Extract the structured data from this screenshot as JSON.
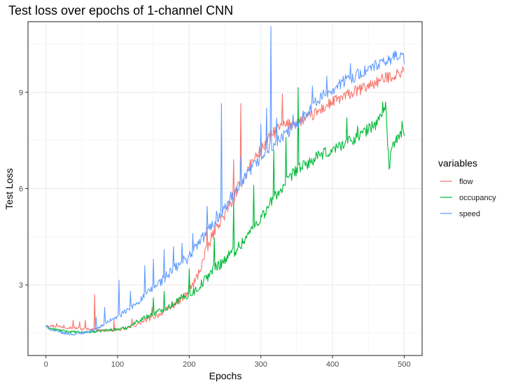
{
  "chart_data": {
    "type": "line",
    "title": "Test loss over epochs of 1-channel CNN",
    "xlabel": "Epochs",
    "ylabel": "Test Loss",
    "xlim": [
      -25,
      525
    ],
    "ylim": [
      0.8,
      11.2
    ],
    "x_ticks": [
      0,
      100,
      200,
      300,
      400,
      500
    ],
    "y_ticks": [
      3,
      6,
      9
    ],
    "grid": true,
    "legend": {
      "title": "variables",
      "position": "right"
    },
    "series": [
      {
        "name": "flow",
        "color": "#F8766D",
        "points": [
          [
            0,
            1.75
          ],
          [
            10,
            1.72
          ],
          [
            20,
            1.7
          ],
          [
            30,
            1.68
          ],
          [
            40,
            1.66
          ],
          [
            50,
            1.63
          ],
          [
            60,
            1.62
          ],
          [
            70,
            1.6
          ],
          [
            80,
            1.58
          ],
          [
            90,
            1.58
          ],
          [
            100,
            1.6
          ],
          [
            110,
            1.62
          ],
          [
            120,
            1.7
          ],
          [
            130,
            1.8
          ],
          [
            140,
            1.9
          ],
          [
            150,
            2.0
          ],
          [
            160,
            2.1
          ],
          [
            170,
            2.25
          ],
          [
            180,
            2.4
          ],
          [
            190,
            2.55
          ],
          [
            200,
            2.8
          ],
          [
            210,
            3.2
          ],
          [
            220,
            3.8
          ],
          [
            230,
            4.4
          ],
          [
            240,
            4.9
          ],
          [
            250,
            5.2
          ],
          [
            260,
            5.6
          ],
          [
            270,
            6.1
          ],
          [
            280,
            6.5
          ],
          [
            290,
            6.9
          ],
          [
            300,
            7.2
          ],
          [
            310,
            7.5
          ],
          [
            320,
            7.8
          ],
          [
            330,
            7.95
          ],
          [
            340,
            8.0
          ],
          [
            350,
            8.05
          ],
          [
            360,
            8.15
          ],
          [
            370,
            8.25
          ],
          [
            380,
            8.4
          ],
          [
            390,
            8.55
          ],
          [
            400,
            8.7
          ],
          [
            410,
            8.8
          ],
          [
            420,
            8.9
          ],
          [
            430,
            9.0
          ],
          [
            440,
            9.1
          ],
          [
            450,
            9.2
          ],
          [
            460,
            9.3
          ],
          [
            470,
            9.4
          ],
          [
            480,
            9.5
          ],
          [
            490,
            9.55
          ],
          [
            500,
            9.7
          ]
        ],
        "spikes": [
          [
            15,
            1.8
          ],
          [
            25,
            1.75
          ],
          [
            38,
            1.9
          ],
          [
            47,
            1.85
          ],
          [
            55,
            1.9
          ],
          [
            68,
            2.7
          ],
          [
            95,
            1.9
          ],
          [
            120,
            1.95
          ],
          [
            148,
            2.3
          ],
          [
            180,
            2.45
          ],
          [
            200,
            3.05
          ],
          [
            225,
            4.8
          ],
          [
            240,
            4.9
          ],
          [
            255,
            5.6
          ],
          [
            262,
            6.9
          ],
          [
            272,
            8.65
          ],
          [
            285,
            6.9
          ],
          [
            292,
            7.0
          ],
          [
            310,
            7.6
          ],
          [
            330,
            8.95
          ],
          [
            345,
            8.1
          ]
        ]
      },
      {
        "name": "occupancy",
        "color": "#00BA38",
        "points": [
          [
            0,
            1.7
          ],
          [
            10,
            1.62
          ],
          [
            20,
            1.58
          ],
          [
            30,
            1.55
          ],
          [
            40,
            1.53
          ],
          [
            50,
            1.52
          ],
          [
            60,
            1.53
          ],
          [
            70,
            1.55
          ],
          [
            80,
            1.58
          ],
          [
            90,
            1.6
          ],
          [
            100,
            1.62
          ],
          [
            110,
            1.65
          ],
          [
            120,
            1.75
          ],
          [
            130,
            1.9
          ],
          [
            140,
            2.0
          ],
          [
            150,
            2.1
          ],
          [
            160,
            2.2
          ],
          [
            170,
            2.3
          ],
          [
            180,
            2.45
          ],
          [
            190,
            2.6
          ],
          [
            200,
            2.7
          ],
          [
            210,
            2.85
          ],
          [
            220,
            3.1
          ],
          [
            230,
            3.4
          ],
          [
            240,
            3.6
          ],
          [
            250,
            3.8
          ],
          [
            260,
            4.0
          ],
          [
            270,
            4.2
          ],
          [
            280,
            4.5
          ],
          [
            290,
            4.8
          ],
          [
            300,
            5.1
          ],
          [
            310,
            5.4
          ],
          [
            320,
            5.8
          ],
          [
            330,
            6.0
          ],
          [
            340,
            6.3
          ],
          [
            350,
            6.6
          ],
          [
            360,
            6.7
          ],
          [
            370,
            6.85
          ],
          [
            380,
            7.0
          ],
          [
            390,
            7.1
          ],
          [
            400,
            7.2
          ],
          [
            410,
            7.35
          ],
          [
            420,
            7.45
          ],
          [
            430,
            7.55
          ],
          [
            440,
            7.7
          ],
          [
            450,
            7.85
          ],
          [
            460,
            8.0
          ],
          [
            470,
            8.35
          ],
          [
            474,
            8.65
          ],
          [
            479,
            6.6
          ],
          [
            482,
            7.3
          ],
          [
            490,
            7.5
          ],
          [
            500,
            7.8
          ]
        ],
        "spikes": [
          [
            150,
            2.6
          ],
          [
            165,
            2.8
          ],
          [
            200,
            3.5
          ],
          [
            235,
            4.45
          ],
          [
            262,
            5.6
          ],
          [
            290,
            6.1
          ],
          [
            318,
            7.2
          ],
          [
            335,
            7.6
          ],
          [
            352,
            9.15
          ],
          [
            372,
            6.8
          ],
          [
            395,
            7.0
          ],
          [
            420,
            8.2
          ],
          [
            435,
            7.95
          ],
          [
            455,
            8.1
          ],
          [
            470,
            8.7
          ],
          [
            497,
            8.1
          ]
        ]
      },
      {
        "name": "speed",
        "color": "#619CFF",
        "points": [
          [
            0,
            1.7
          ],
          [
            10,
            1.58
          ],
          [
            20,
            1.52
          ],
          [
            30,
            1.48
          ],
          [
            40,
            1.46
          ],
          [
            50,
            1.5
          ],
          [
            60,
            1.55
          ],
          [
            70,
            1.62
          ],
          [
            80,
            1.75
          ],
          [
            90,
            1.9
          ],
          [
            100,
            2.0
          ],
          [
            110,
            2.15
          ],
          [
            120,
            2.3
          ],
          [
            130,
            2.5
          ],
          [
            140,
            2.7
          ],
          [
            150,
            2.9
          ],
          [
            160,
            3.1
          ],
          [
            170,
            3.3
          ],
          [
            180,
            3.5
          ],
          [
            190,
            3.7
          ],
          [
            200,
            3.9
          ],
          [
            210,
            4.2
          ],
          [
            220,
            4.5
          ],
          [
            230,
            4.8
          ],
          [
            240,
            5.1
          ],
          [
            250,
            5.4
          ],
          [
            260,
            5.7
          ],
          [
            270,
            6.0
          ],
          [
            280,
            6.4
          ],
          [
            290,
            6.7
          ],
          [
            300,
            6.95
          ],
          [
            310,
            7.2
          ],
          [
            320,
            7.4
          ],
          [
            330,
            7.6
          ],
          [
            340,
            7.8
          ],
          [
            350,
            8.0
          ],
          [
            360,
            8.3
          ],
          [
            370,
            8.55
          ],
          [
            380,
            8.75
          ],
          [
            390,
            8.95
          ],
          [
            400,
            9.1
          ],
          [
            410,
            9.25
          ],
          [
            420,
            9.4
          ],
          [
            430,
            9.5
          ],
          [
            440,
            9.6
          ],
          [
            450,
            9.7
          ],
          [
            460,
            9.8
          ],
          [
            470,
            9.9
          ],
          [
            480,
            10.0
          ],
          [
            490,
            10.2
          ],
          [
            500,
            10.05
          ]
        ],
        "spikes": [
          [
            70,
            2.0
          ],
          [
            82,
            2.3
          ],
          [
            102,
            3.15
          ],
          [
            118,
            2.8
          ],
          [
            138,
            3.6
          ],
          [
            150,
            3.8
          ],
          [
            165,
            4.1
          ],
          [
            178,
            4.2
          ],
          [
            190,
            4.3
          ],
          [
            205,
            4.6
          ],
          [
            225,
            5.45
          ],
          [
            238,
            5.3
          ],
          [
            245,
            8.65
          ],
          [
            258,
            5.9
          ],
          [
            272,
            7.0
          ],
          [
            300,
            8.0
          ],
          [
            308,
            8.5
          ],
          [
            314,
            11.05
          ],
          [
            322,
            8.2
          ],
          [
            345,
            8.3
          ],
          [
            372,
            9.2
          ],
          [
            392,
            9.5
          ],
          [
            425,
            9.9
          ],
          [
            460,
            10.0
          ],
          [
            487,
            10.3
          ]
        ]
      }
    ]
  }
}
